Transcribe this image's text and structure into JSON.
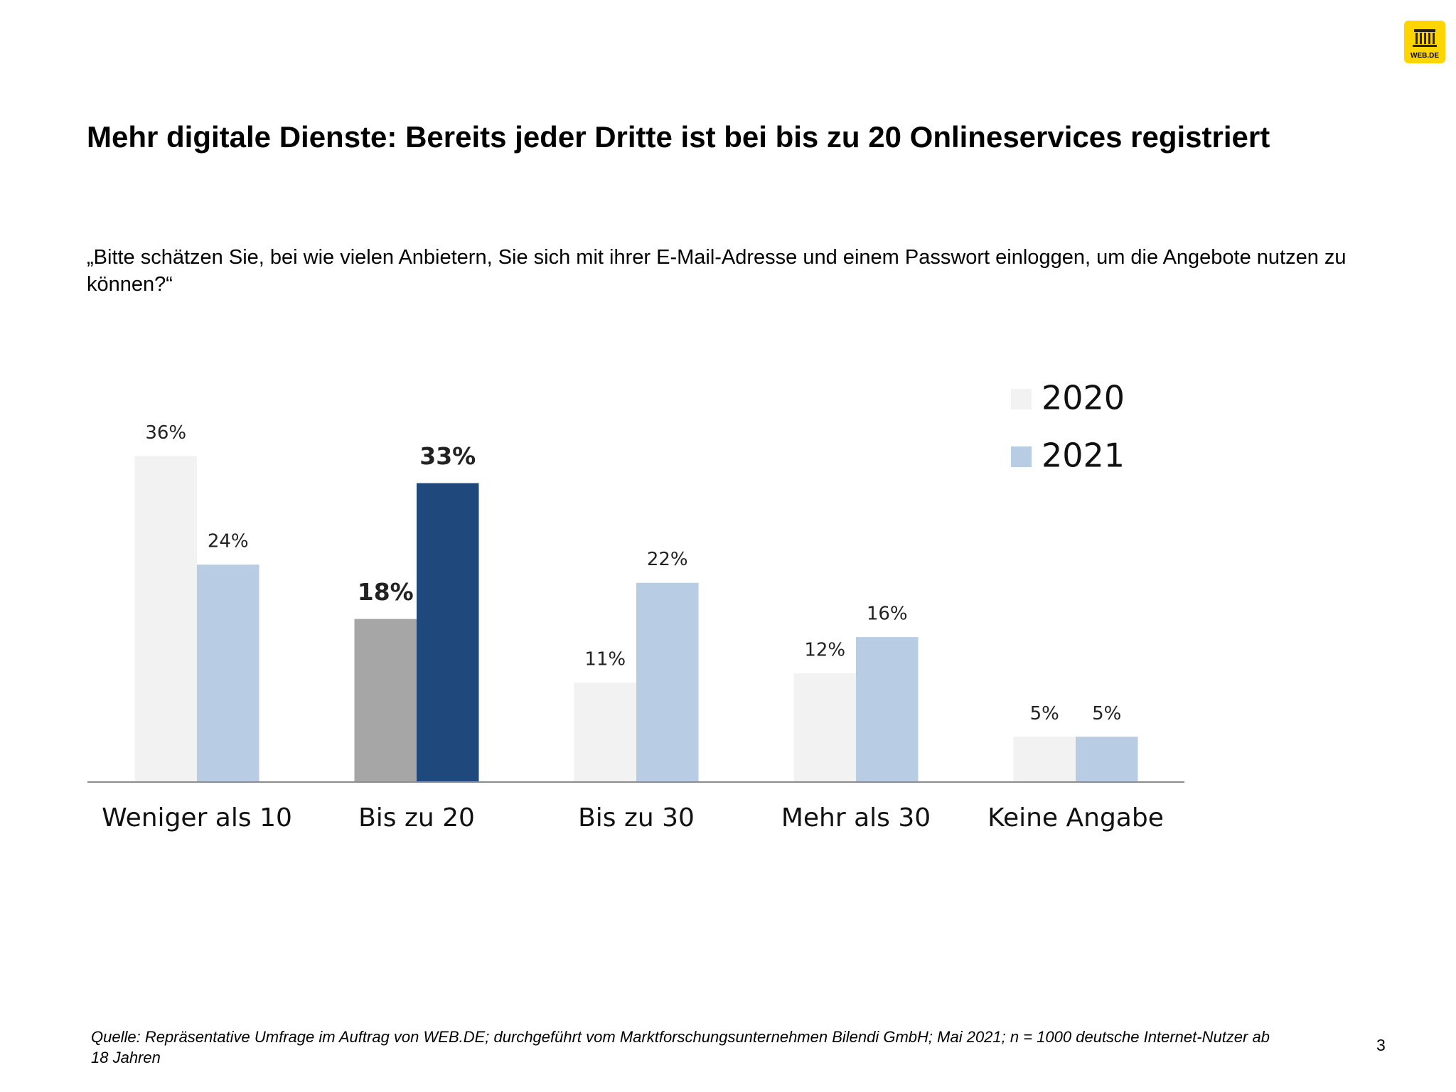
{
  "logo": "WEB.DE",
  "title": "Mehr digitale Dienste: Bereits jeder Dritte ist bei bis zu 20 Onlineservices registriert",
  "question": "„Bitte schätzen Sie, bei wie vielen Anbietern, Sie sich mit ihrer E-Mail-Adresse und einem Passwort einloggen, um die Angebote nutzen zu können?“",
  "chart_data": {
    "type": "bar",
    "categories": [
      "Weniger als 10",
      "Bis zu 20",
      "Bis zu 30",
      "Mehr als 30",
      "Keine Angabe"
    ],
    "series": [
      {
        "name": "2020",
        "color": "#f2f2f2",
        "colors": [
          "#f2f2f2",
          "#a6a6a6",
          "#f2f2f2",
          "#f2f2f2",
          "#f2f2f2"
        ],
        "values": [
          36,
          18,
          11,
          12,
          5
        ],
        "value_labels": [
          "36%",
          "18%",
          "11%",
          "12%",
          "5%"
        ],
        "bold": [
          false,
          true,
          false,
          false,
          false
        ]
      },
      {
        "name": "2021",
        "color": "#b8cce4",
        "colors": [
          "#b8cce4",
          "#1f497d",
          "#b8cce4",
          "#b8cce4",
          "#b8cce4"
        ],
        "values": [
          24,
          33,
          22,
          16,
          5
        ],
        "value_labels": [
          "24%",
          "33%",
          "22%",
          "16%",
          "5%"
        ],
        "bold": [
          false,
          true,
          false,
          false,
          false
        ]
      }
    ],
    "legend": "top-right"
  },
  "source": "Quelle: Repräsentative Umfrage im Auftrag von WEB.DE; durchgeführt vom Marktforschungsunternehmen Bilendi GmbH; Mai 2021; n = 1000 deutsche Internet-Nutzer ab 18 Jahren",
  "page_number": 3
}
